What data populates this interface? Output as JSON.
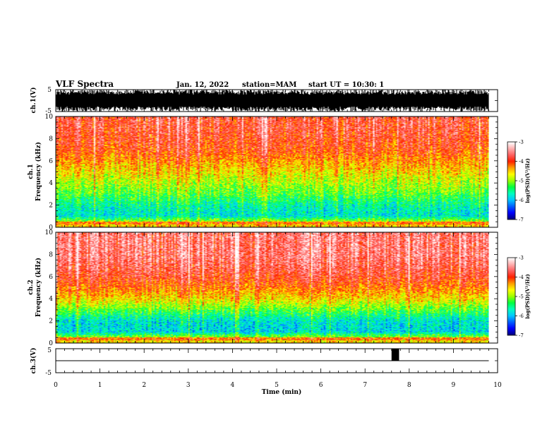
{
  "header": {
    "title": "VLF Spectra",
    "date": "Jan. 12, 2022",
    "station": "station=MAM",
    "start": "start UT = 10:30: 1"
  },
  "chart_data": [
    {
      "type": "line",
      "title": "",
      "ylabel": "ch.1(V)",
      "ylim": [
        -5,
        5
      ],
      "yticks": [
        "5",
        "-5"
      ],
      "xlim": [
        0,
        10
      ],
      "description_values": {
        "amplitude_min": -5,
        "amplitude_max": 5,
        "data_end_min": 9.8
      }
    },
    {
      "type": "heatmap",
      "ylabel": "Frequency (kHz)",
      "channel": "ch.1",
      "ylim": [
        0,
        10
      ],
      "yticks": [
        "0",
        "2",
        "4",
        "6",
        "8",
        "10"
      ],
      "xlim": [
        0,
        10
      ],
      "data_end_min": 9.8,
      "colorbar": {
        "label": "log(PSD)(V²/Hz)",
        "range": [
          -7,
          -3
        ],
        "ticks": [
          "-3",
          "-4",
          "-5",
          "-6",
          "-7"
        ]
      },
      "band_log_psd": [
        {
          "freq": 0.25,
          "value": -4.5
        },
        {
          "freq": 1.0,
          "value": -5.8
        },
        {
          "freq": 2.0,
          "value": -5.6
        },
        {
          "freq": 3.0,
          "value": -5.2
        },
        {
          "freq": 4.0,
          "value": -4.9
        },
        {
          "freq": 5.0,
          "value": -4.6
        },
        {
          "freq": 6.0,
          "value": -4.3
        },
        {
          "freq": 7.0,
          "value": -4.0
        },
        {
          "freq": 8.0,
          "value": -3.9
        },
        {
          "freq": 9.0,
          "value": -3.8
        },
        {
          "freq": 10.0,
          "value": -3.8
        }
      ]
    },
    {
      "type": "heatmap",
      "ylabel": "Frequency (kHz)",
      "channel": "ch.2",
      "ylim": [
        0,
        10
      ],
      "yticks": [
        "0",
        "2",
        "4",
        "6",
        "8",
        "10"
      ],
      "xlim": [
        0,
        10
      ],
      "data_end_min": 9.8,
      "colorbar": {
        "label": "log(PSD)(V²/Hz)",
        "range": [
          -7,
          -3
        ],
        "ticks": [
          "-3",
          "-4",
          "-5",
          "-6",
          "-7"
        ]
      },
      "band_log_psd": [
        {
          "freq": 0.25,
          "value": -4.6
        },
        {
          "freq": 1.0,
          "value": -5.9
        },
        {
          "freq": 2.0,
          "value": -5.8
        },
        {
          "freq": 3.0,
          "value": -5.2
        },
        {
          "freq": 4.0,
          "value": -4.6
        },
        {
          "freq": 5.0,
          "value": -4.2
        },
        {
          "freq": 6.0,
          "value": -3.9
        },
        {
          "freq": 7.0,
          "value": -3.7
        },
        {
          "freq": 8.0,
          "value": -3.6
        },
        {
          "freq": 9.0,
          "value": -3.6
        },
        {
          "freq": 10.0,
          "value": -3.6
        }
      ]
    },
    {
      "type": "line",
      "ylabel": "ch.3(V)",
      "ylim": [
        -5,
        5
      ],
      "yticks": [
        "5",
        "-5"
      ],
      "xlim": [
        0,
        10
      ],
      "baseline": 0,
      "pulses": [
        {
          "start": 7.6,
          "end": 7.77,
          "high": 5
        }
      ],
      "data_end_min": 9.8
    }
  ],
  "xaxis": {
    "label": "Time (min)",
    "ticks": [
      "0",
      "1",
      "2",
      "3",
      "4",
      "5",
      "6",
      "7",
      "8",
      "9",
      "10"
    ]
  },
  "colorscale": [
    "#000080",
    "#0000ff",
    "#0060ff",
    "#00c8ff",
    "#00ffc0",
    "#00ff40",
    "#9cff00",
    "#ffff00",
    "#ffa000",
    "#ff2000",
    "#ff6060",
    "#ffb0b0",
    "#ffffff"
  ]
}
